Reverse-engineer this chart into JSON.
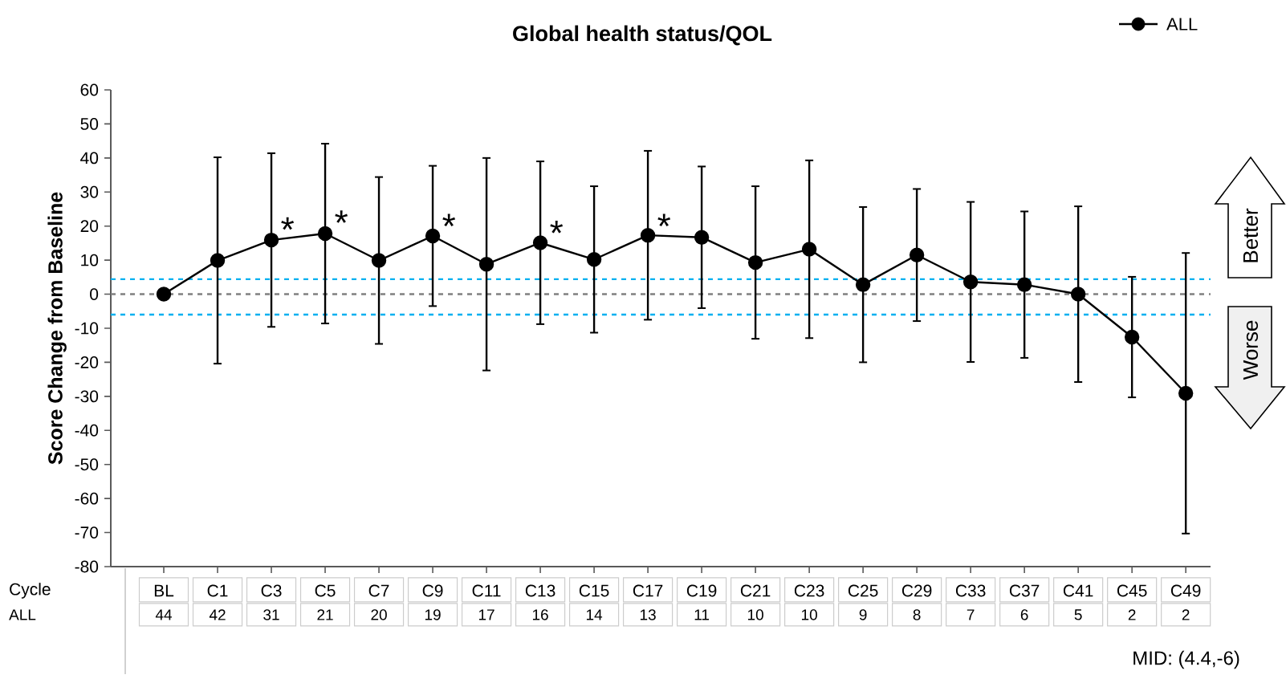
{
  "chart_data": {
    "type": "line",
    "title": "Global health status/QOL",
    "ylabel": "Score Change from Baseline",
    "xlabel": "Cycle",
    "categories": [
      "BL",
      "C1",
      "C3",
      "C5",
      "C7",
      "C9",
      "C11",
      "C13",
      "C15",
      "C17",
      "C19",
      "C21",
      "C23",
      "C25",
      "C29",
      "C33",
      "C37",
      "C41",
      "C45",
      "C49"
    ],
    "series": [
      {
        "name": "ALL",
        "color": "#000000",
        "values": [
          0,
          9.9,
          15.9,
          17.8,
          9.9,
          17.1,
          8.8,
          15.1,
          10.2,
          17.3,
          16.7,
          9.3,
          13.2,
          2.8,
          11.5,
          3.6,
          2.8,
          0,
          -12.6,
          -29.1
        ],
        "errors": [
          null,
          30.3,
          25.5,
          26.4,
          24.5,
          20.6,
          31.2,
          23.9,
          21.5,
          24.8,
          20.8,
          22.4,
          26.1,
          22.8,
          19.4,
          23.5,
          21.5,
          25.8,
          17.7,
          41.2
        ]
      }
    ],
    "ylim": [
      -80,
      60
    ],
    "yticks": [
      -80,
      -70,
      -60,
      -50,
      -40,
      -30,
      -20,
      -10,
      0,
      10,
      20,
      30,
      40,
      50,
      60
    ],
    "ref_lines": [
      {
        "axis": "y",
        "value": 0,
        "color": "#808080",
        "line_style": "dashed"
      },
      {
        "axis": "y",
        "value": 4.4,
        "color": "#00b0f0",
        "line_style": "dashed"
      },
      {
        "axis": "y",
        "value": -6,
        "color": "#00b0f0",
        "line_style": "dashed"
      }
    ],
    "annotations": [
      {
        "text": "*",
        "x": "C3",
        "y": 19
      },
      {
        "text": "*",
        "x": "C5",
        "y": 21
      },
      {
        "text": "*",
        "x": "C9",
        "y": 20
      },
      {
        "text": "*",
        "x": "C13",
        "y": 18
      },
      {
        "text": "*",
        "x": "C17",
        "y": 20
      },
      "44",
      "42",
      "31",
      "21",
      "20",
      "19",
      "17",
      "16",
      "14",
      "13",
      "11",
      "10",
      "10",
      "9",
      "8",
      "7",
      "6",
      "5",
      "2",
      "2",
      "Better",
      "Worse",
      "MID: (4.4,-6)"
    ],
    "legend": "top right",
    "marker": "circle",
    "line_style": "solid",
    "grid": false
  }
}
